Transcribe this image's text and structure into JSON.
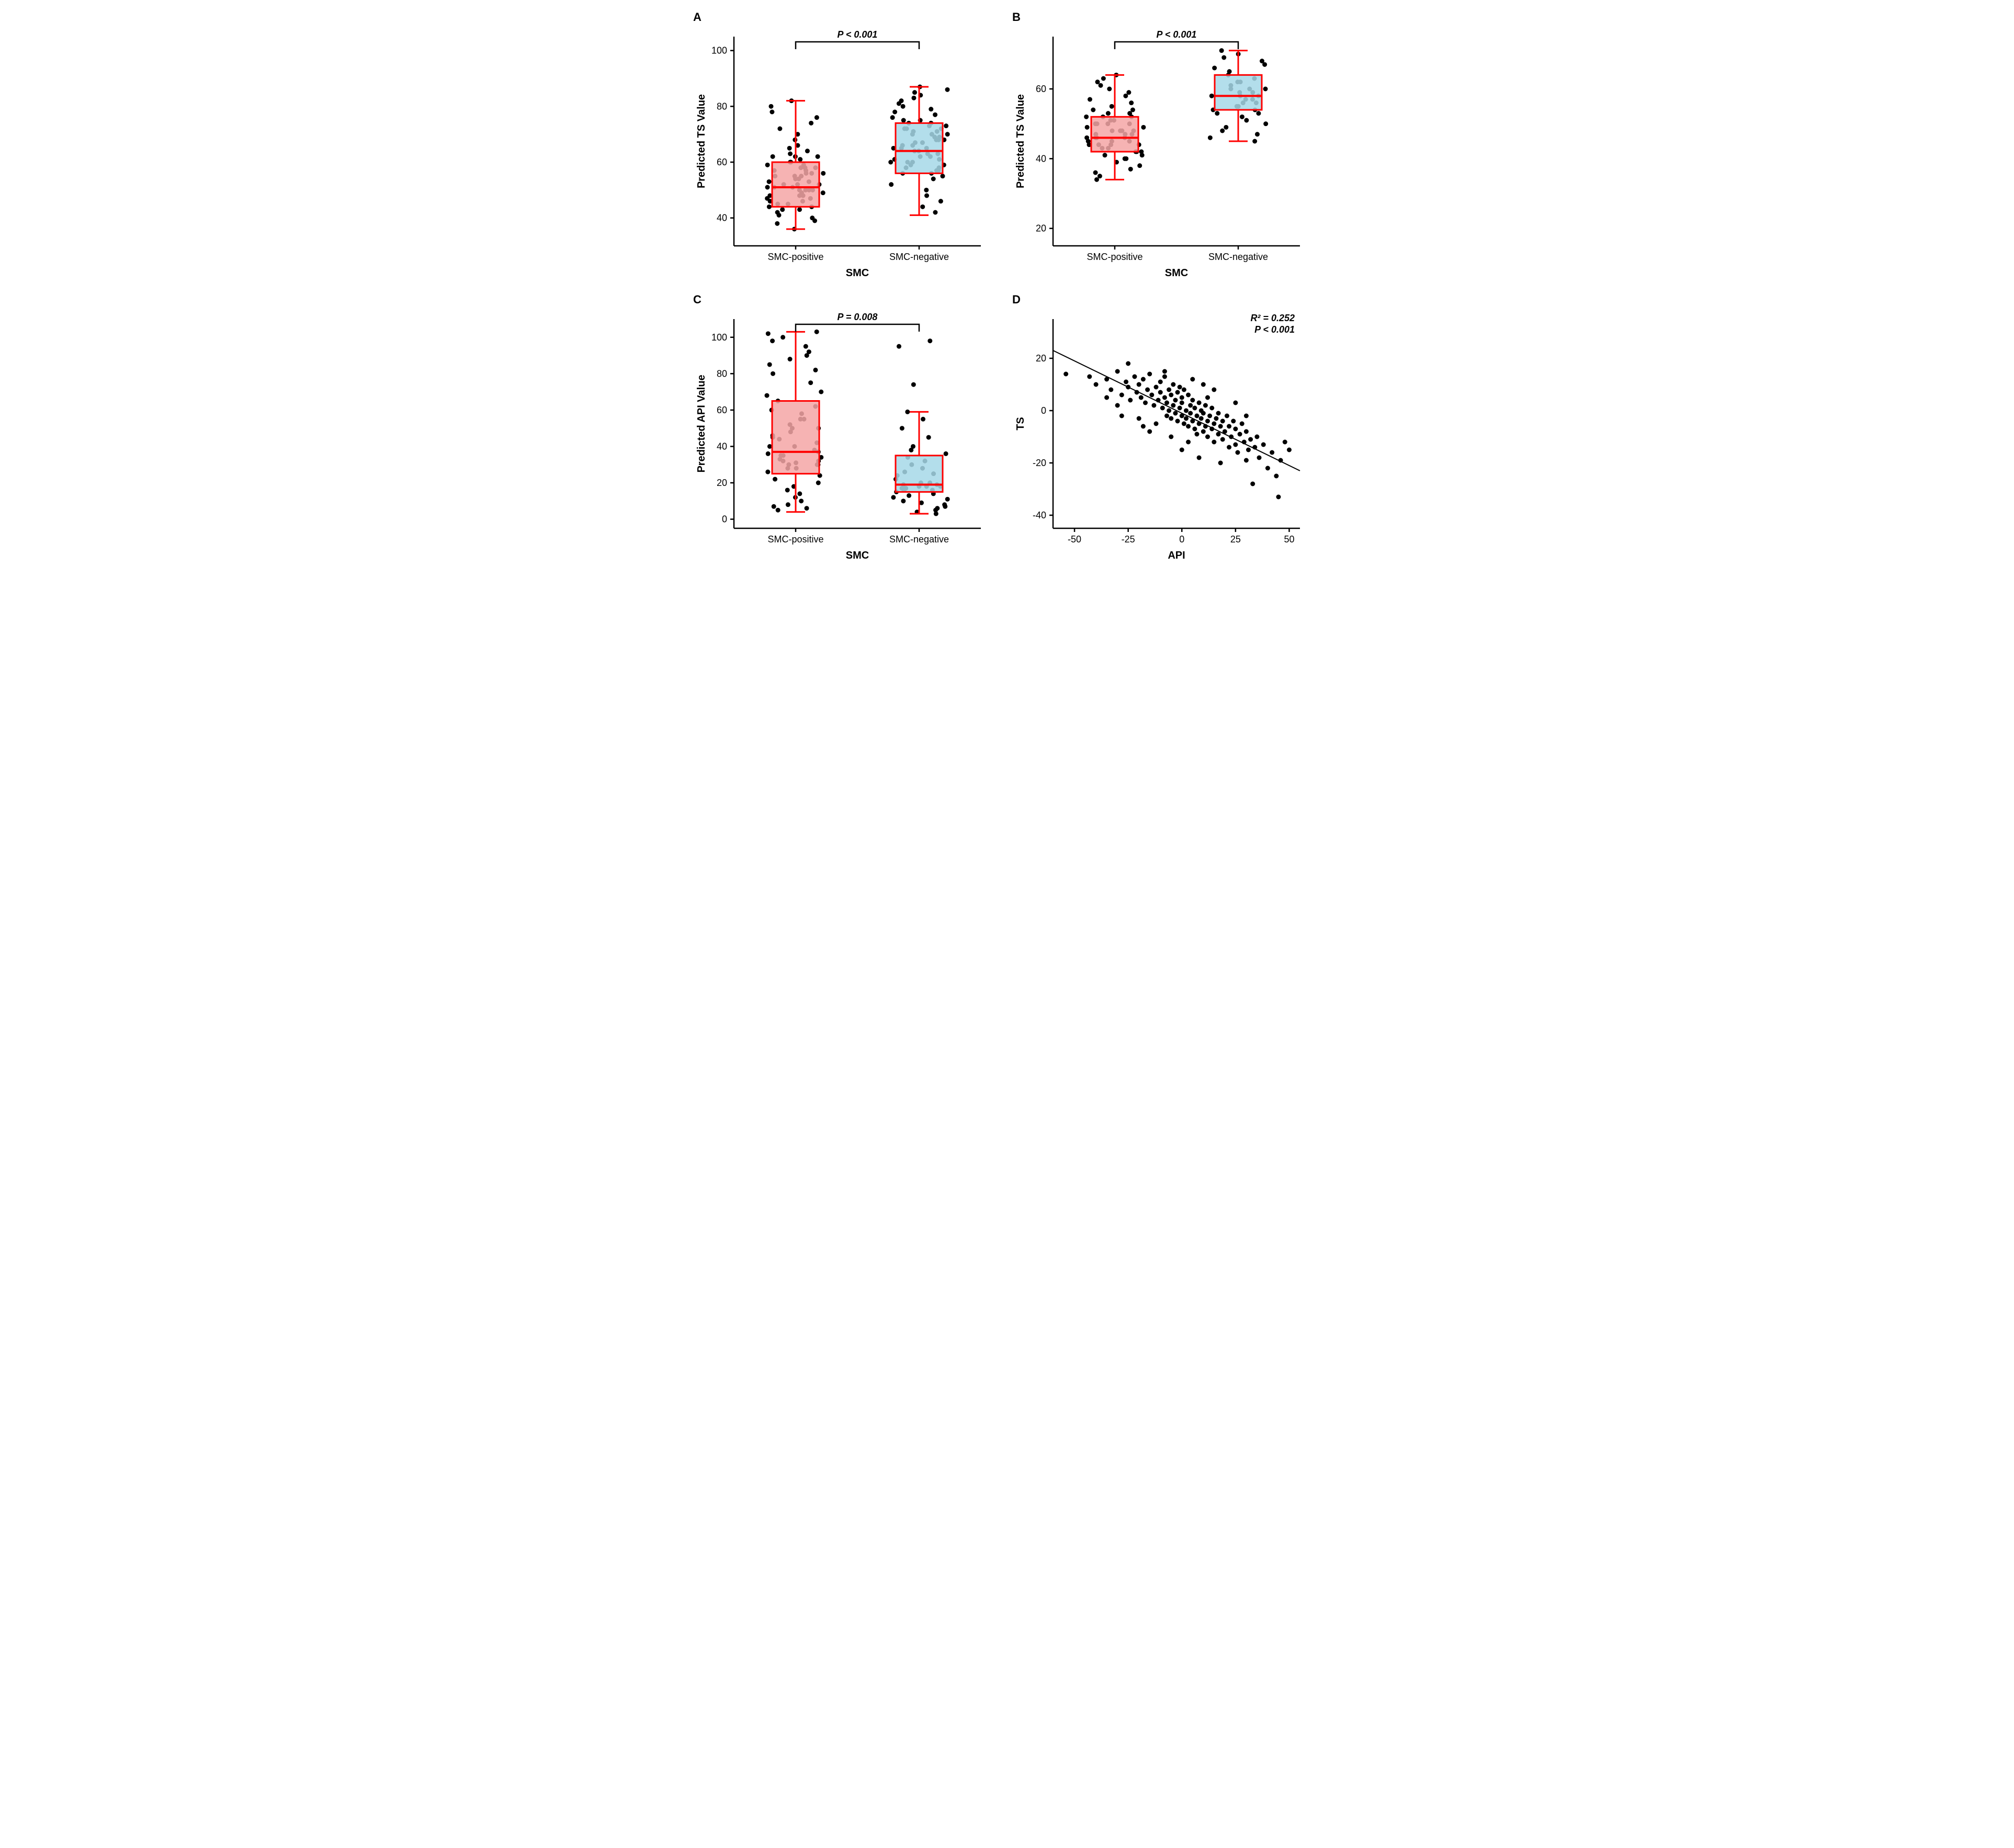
{
  "global": {
    "bg": "#ffffff",
    "axis_color": "#000000",
    "axis_width": 2.5,
    "tick_len": 7,
    "tick_fontsize": 18,
    "label_fontsize": 20,
    "panel_label_fontsize": 22,
    "pvalue_fontsize": 18,
    "point_color": "#000000",
    "point_radius": 4.5,
    "box_stroke": "#ff0000",
    "box_stroke_width": 3,
    "whisker_width": 3,
    "cap_halfwidth": 18,
    "box_halfwidth": 45,
    "jitter_width": 55
  },
  "panels": {
    "A": {
      "label": "A",
      "type": "boxplot",
      "ylabel": "Predicted TS Value",
      "xlabel": "SMC",
      "categories": [
        "SMC-positive",
        "SMC-negative"
      ],
      "ylim": [
        30,
        105
      ],
      "yticks": [
        40,
        60,
        80,
        100
      ],
      "pvalue": "P  < 0.001",
      "boxes": [
        {
          "fill": "#f4a6a6",
          "min": 36,
          "q1": 44,
          "median": 51,
          "q3": 60,
          "max": 82
        },
        {
          "fill": "#a6d8e8",
          "min": 41,
          "q1": 56,
          "median": 64,
          "q3": 74,
          "max": 87
        }
      ],
      "jitter": [
        [
          38,
          40,
          41,
          42,
          43,
          43,
          44,
          44,
          45,
          46,
          46,
          47,
          47,
          48,
          48,
          49,
          49,
          50,
          50,
          50,
          51,
          51,
          51,
          52,
          52,
          53,
          53,
          54,
          54,
          55,
          55,
          56,
          56,
          57,
          57,
          58,
          58,
          59,
          59,
          60,
          60,
          61,
          62,
          62,
          63,
          64,
          65,
          66,
          68,
          70,
          72,
          74,
          76,
          78,
          80,
          82,
          36,
          39,
          45,
          50,
          55,
          48,
          52,
          58,
          62,
          56
        ],
        [
          42,
          44,
          46,
          48,
          50,
          52,
          54,
          55,
          56,
          56,
          57,
          57,
          58,
          58,
          59,
          59,
          60,
          60,
          61,
          61,
          62,
          62,
          63,
          63,
          64,
          64,
          65,
          65,
          66,
          66,
          67,
          67,
          68,
          68,
          69,
          69,
          70,
          70,
          71,
          71,
          72,
          72,
          73,
          73,
          74,
          74,
          75,
          76,
          77,
          78,
          79,
          80,
          81,
          82,
          83,
          84,
          85,
          86,
          87,
          60,
          65,
          70,
          75,
          68,
          72
        ]
      ]
    },
    "B": {
      "label": "B",
      "type": "boxplot",
      "ylabel": "Predicted TS Value",
      "xlabel": "SMC",
      "categories": [
        "SMC-positive",
        "SMC-negative"
      ],
      "ylim": [
        15,
        75
      ],
      "yticks": [
        20,
        40,
        60
      ],
      "pvalue": "P  < 0.001",
      "boxes": [
        {
          "fill": "#f4a6a6",
          "min": 34,
          "q1": 42,
          "median": 46,
          "q3": 52,
          "max": 64
        },
        {
          "fill": "#a6d8e8",
          "min": 45,
          "q1": 54,
          "median": 58,
          "q3": 64,
          "max": 71
        }
      ],
      "jitter": [
        [
          34,
          35,
          36,
          37,
          38,
          39,
          40,
          40,
          41,
          41,
          42,
          42,
          43,
          43,
          44,
          44,
          44,
          45,
          45,
          45,
          46,
          46,
          46,
          47,
          47,
          47,
          48,
          48,
          48,
          49,
          49,
          50,
          50,
          50,
          51,
          51,
          52,
          52,
          53,
          53,
          54,
          54,
          55,
          56,
          57,
          58,
          59,
          60,
          61,
          62,
          63,
          64,
          46,
          48,
          50,
          52,
          44,
          42
        ],
        [
          45,
          46,
          47,
          48,
          49,
          50,
          51,
          52,
          53,
          53,
          54,
          54,
          55,
          55,
          56,
          56,
          57,
          57,
          58,
          58,
          59,
          59,
          60,
          60,
          61,
          62,
          63,
          64,
          65,
          66,
          67,
          68,
          69,
          70,
          71,
          58,
          60,
          62
        ]
      ]
    },
    "C": {
      "label": "C",
      "type": "boxplot",
      "ylabel": "Predicted API Value",
      "xlabel": "SMC",
      "categories": [
        "SMC-positive",
        "SMC-negative"
      ],
      "ylim": [
        -5,
        110
      ],
      "yticks": [
        0,
        20,
        40,
        60,
        80,
        100
      ],
      "pvalue": "P = 0.008",
      "boxes": [
        {
          "fill": "#f4a6a6",
          "min": 4,
          "q1": 25,
          "median": 37,
          "q3": 65,
          "max": 103
        },
        {
          "fill": "#a6d8e8",
          "min": 3,
          "q1": 15,
          "median": 19,
          "q3": 35,
          "max": 59
        }
      ],
      "jitter": [
        [
          5,
          6,
          7,
          8,
          10,
          12,
          14,
          16,
          18,
          20,
          22,
          24,
          26,
          28,
          30,
          30,
          31,
          32,
          33,
          34,
          35,
          36,
          37,
          38,
          40,
          42,
          44,
          46,
          48,
          50,
          52,
          55,
          58,
          60,
          62,
          65,
          68,
          70,
          75,
          80,
          82,
          85,
          88,
          90,
          92,
          95,
          98,
          100,
          102,
          103,
          30,
          35,
          40,
          45,
          50,
          55,
          28,
          32
        ],
        [
          3,
          4,
          5,
          6,
          7,
          8,
          9,
          10,
          11,
          12,
          13,
          14,
          15,
          16,
          16,
          17,
          17,
          18,
          18,
          19,
          19,
          20,
          22,
          24,
          26,
          28,
          30,
          32,
          34,
          36,
          38,
          40,
          45,
          50,
          55,
          59,
          74,
          98,
          95,
          18,
          20,
          25
        ]
      ]
    },
    "D": {
      "label": "D",
      "type": "scatter",
      "ylabel": "TS",
      "xlabel": "API",
      "xlim": [
        -60,
        55
      ],
      "xticks": [
        -50,
        -25,
        0,
        25,
        50
      ],
      "ylim": [
        -45,
        35
      ],
      "yticks": [
        -40,
        -20,
        0,
        20
      ],
      "stats": [
        "R² = 0.252",
        "P < 0.001"
      ],
      "line": {
        "x1": -60,
        "y1": 23,
        "x2": 55,
        "y2": -23,
        "color": "#000000",
        "width": 2
      },
      "points": [
        [
          -54,
          14
        ],
        [
          -43,
          13
        ],
        [
          -40,
          10
        ],
        [
          -35,
          12
        ],
        [
          -33,
          8
        ],
        [
          -30,
          15
        ],
        [
          -28,
          6
        ],
        [
          -26,
          11
        ],
        [
          -25,
          9
        ],
        [
          -24,
          4
        ],
        [
          -22,
          13
        ],
        [
          -21,
          7
        ],
        [
          -20,
          10
        ],
        [
          -19,
          5
        ],
        [
          -18,
          12
        ],
        [
          -17,
          3
        ],
        [
          -16,
          8
        ],
        [
          -15,
          14
        ],
        [
          -14,
          6
        ],
        [
          -13,
          2
        ],
        [
          -12,
          9
        ],
        [
          -11,
          4
        ],
        [
          -10,
          11
        ],
        [
          -10,
          7
        ],
        [
          -9,
          1
        ],
        [
          -8,
          5
        ],
        [
          -8,
          13
        ],
        [
          -7,
          3
        ],
        [
          -7,
          -2
        ],
        [
          -6,
          8
        ],
        [
          -6,
          0
        ],
        [
          -5,
          6
        ],
        [
          -5,
          -3
        ],
        [
          -4,
          10
        ],
        [
          -4,
          2
        ],
        [
          -3,
          4
        ],
        [
          -3,
          -1
        ],
        [
          -2,
          7
        ],
        [
          -2,
          -4
        ],
        [
          -1,
          1
        ],
        [
          -1,
          9
        ],
        [
          0,
          5
        ],
        [
          0,
          -2
        ],
        [
          0,
          3
        ],
        [
          1,
          -5
        ],
        [
          1,
          8
        ],
        [
          2,
          0
        ],
        [
          2,
          -3
        ],
        [
          3,
          6
        ],
        [
          3,
          -6
        ],
        [
          4,
          2
        ],
        [
          4,
          -1
        ],
        [
          5,
          -4
        ],
        [
          5,
          4
        ],
        [
          6,
          -7
        ],
        [
          6,
          1
        ],
        [
          7,
          -2
        ],
        [
          7,
          -9
        ],
        [
          8,
          3
        ],
        [
          8,
          -5
        ],
        [
          9,
          -3
        ],
        [
          9,
          0
        ],
        [
          10,
          -8
        ],
        [
          10,
          -1
        ],
        [
          11,
          -6
        ],
        [
          11,
          2
        ],
        [
          12,
          -4
        ],
        [
          12,
          -10
        ],
        [
          13,
          -2
        ],
        [
          14,
          -7
        ],
        [
          14,
          1
        ],
        [
          15,
          -5
        ],
        [
          15,
          -12
        ],
        [
          16,
          -3
        ],
        [
          17,
          -9
        ],
        [
          17,
          -1
        ],
        [
          18,
          -6
        ],
        [
          19,
          -11
        ],
        [
          19,
          -4
        ],
        [
          20,
          -8
        ],
        [
          21,
          -2
        ],
        [
          22,
          -14
        ],
        [
          22,
          -6
        ],
        [
          23,
          -10
        ],
        [
          24,
          -4
        ],
        [
          25,
          -13
        ],
        [
          25,
          -7
        ],
        [
          26,
          -16
        ],
        [
          27,
          -9
        ],
        [
          28,
          -5
        ],
        [
          29,
          -12
        ],
        [
          30,
          -19
        ],
        [
          30,
          -8
        ],
        [
          31,
          -15
        ],
        [
          32,
          -11
        ],
        [
          33,
          -28
        ],
        [
          34,
          -14
        ],
        [
          35,
          -10
        ],
        [
          36,
          -18
        ],
        [
          38,
          -13
        ],
        [
          40,
          -22
        ],
        [
          42,
          -16
        ],
        [
          44,
          -25
        ],
        [
          45,
          -33
        ],
        [
          46,
          -19
        ],
        [
          48,
          -12
        ],
        [
          50,
          -15
        ],
        [
          -15,
          -8
        ],
        [
          -12,
          -5
        ],
        [
          -8,
          15
        ],
        [
          5,
          12
        ],
        [
          10,
          10
        ],
        [
          15,
          8
        ],
        [
          -20,
          -3
        ],
        [
          -5,
          -10
        ],
        [
          0,
          -15
        ],
        [
          8,
          -18
        ],
        [
          -30,
          2
        ],
        [
          -25,
          18
        ],
        [
          -18,
          -6
        ],
        [
          3,
          -12
        ],
        [
          12,
          5
        ],
        [
          18,
          -20
        ],
        [
          25,
          3
        ],
        [
          30,
          -2
        ],
        [
          -35,
          5
        ],
        [
          -28,
          -2
        ]
      ]
    }
  }
}
